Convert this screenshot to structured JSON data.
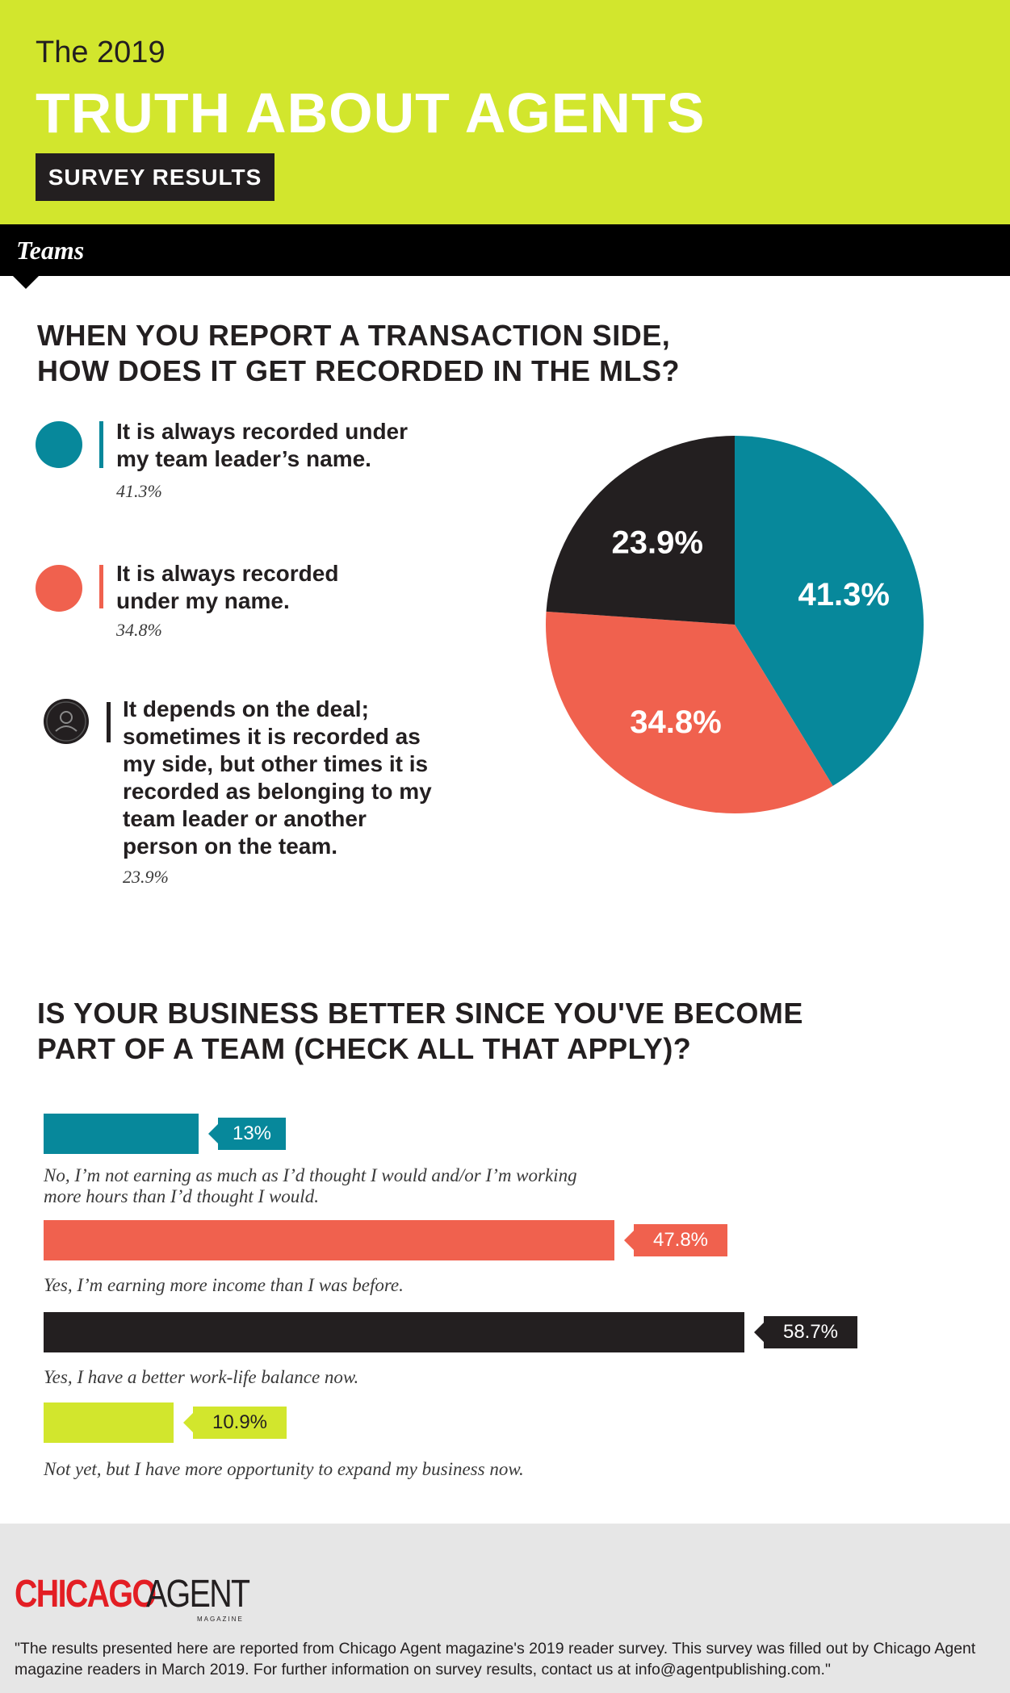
{
  "header": {
    "pre_title": "The 2019",
    "title": "TRUTH ABOUT AGENTS",
    "badge": "SURVEY RESULTS"
  },
  "section": {
    "label": "Teams"
  },
  "colors": {
    "teal": "#07889b",
    "coral": "#f0614e",
    "black": "#231f20",
    "lime": "#d2e62d"
  },
  "q1": {
    "question": "WHEN YOU REPORT A TRANSACTION SIDE,\nHOW DOES IT GET RECORDED IN THE MLS?",
    "legend": [
      {
        "text": "It is always recorded under\nmy team leader’s name.",
        "pct": "41.3%",
        "color": "#07889b"
      },
      {
        "text": "It is always recorded\nunder my name.",
        "pct": "34.8%",
        "color": "#f0614e"
      },
      {
        "text": "It depends on the deal;\nsometimes it is recorded as\nmy side, but other times it is\nrecorded as belonging to my\nteam leader or another\nperson on the team.",
        "pct": "23.9%",
        "color": "#231f20",
        "icon": "person-icon"
      }
    ]
  },
  "q2": {
    "question": "IS YOUR BUSINESS BETTER SINCE YOU'VE BECOME\nPART OF A TEAM (CHECK ALL THAT APPLY)?",
    "bars": [
      {
        "value_label": "13%",
        "label": "No, I’m not earning as much as I’d thought I would and/or I’m working\nmore hours than I’d thought I would."
      },
      {
        "value_label": "47.8%",
        "label": "Yes, I’m earning more income than I was before."
      },
      {
        "value_label": "58.7%",
        "label": "Yes, I have a better work-life balance now."
      },
      {
        "value_label": "10.9%",
        "label": "Not yet, but I have more opportunity to expand my business now."
      }
    ]
  },
  "chart_data": [
    {
      "type": "pie",
      "title": "WHEN YOU REPORT A TRANSACTION SIDE, HOW DOES IT GET RECORDED IN THE MLS?",
      "categories": [
        "It is always recorded under my team leader’s name.",
        "It is always recorded under my name.",
        "It depends on the deal; sometimes it is recorded as my side, but other times it is recorded as belonging to my team leader or another person on the team."
      ],
      "values": [
        41.3,
        34.8,
        23.9
      ],
      "labels": [
        "41.3%",
        "34.8%",
        "23.9%"
      ],
      "colors": [
        "#07889b",
        "#f0614e",
        "#231f20"
      ]
    },
    {
      "type": "bar",
      "title": "IS YOUR BUSINESS BETTER SINCE YOU'VE BECOME PART OF A TEAM (CHECK ALL THAT APPLY)?",
      "orientation": "horizontal",
      "categories": [
        "No, I’m not earning as much as I’d thought I would and/or I’m working more hours than I’d thought I would.",
        "Yes, I’m earning more income than I was before.",
        "Yes, I have a better work-life balance now.",
        "Not yet, but I have more opportunity to expand my business now."
      ],
      "values": [
        13,
        47.8,
        58.7,
        10.9
      ],
      "unit": "%",
      "colors": [
        "#07889b",
        "#f0614e",
        "#231f20",
        "#d2e62d"
      ]
    }
  ],
  "footer": {
    "logo_chicago": "CHICAGO",
    "logo_agent": "AGENT",
    "logo_sub": "MAGAZINE",
    "disclaimer": "\"The results presented here are reported from Chicago Agent magazine's 2019 reader survey. This survey was filled out by Chicago Agent magazine readers in March 2019. For further information on survey results, contact us at info@agentpublishing.com.\""
  }
}
